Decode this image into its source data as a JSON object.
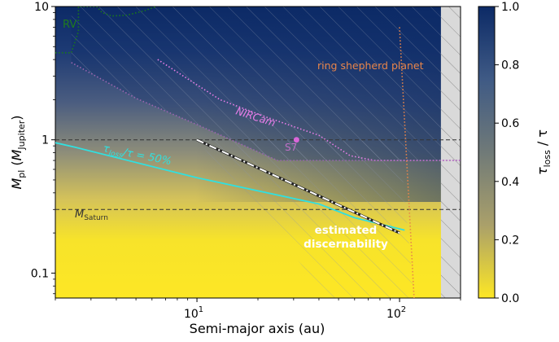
{
  "chart_data": {
    "type": "heatmap",
    "xlabel": "Semi-major axis (au)",
    "ylabel_main": "M",
    "ylabel_main_sub": "pl",
    "ylabel_paren_open": " (",
    "ylabel_paren_m": "M",
    "ylabel_paren_sub": "Jupiter",
    "ylabel_paren_close": ")",
    "xscale": "log",
    "yscale": "log",
    "xlim": [
      2,
      200
    ],
    "ylim": [
      0.065,
      10
    ],
    "x_ticks": [
      {
        "value": 10,
        "base": "10",
        "exp": "1"
      },
      {
        "value": 100,
        "base": "10",
        "exp": "2"
      }
    ],
    "y_ticks": [
      {
        "value": 0.1,
        "label": "0.1"
      },
      {
        "value": 1,
        "label": "1"
      },
      {
        "value": 10,
        "label": "10"
      }
    ],
    "colorbar": {
      "label_tau": "τ",
      "label_sub": "loss",
      "label_rest": " / τ",
      "range": [
        0,
        1
      ],
      "ticks": [
        "0.0",
        "0.2",
        "0.4",
        "0.6",
        "0.8",
        "1.0"
      ],
      "colors": [
        "#fde725",
        "#aaa06a",
        "#707a78",
        "#3f5a85",
        "#103070"
      ]
    },
    "reference_lines": [
      {
        "name": "jupiter",
        "y": 1
      },
      {
        "name": "saturn",
        "y": 0.3,
        "label_main": "M",
        "label_sub": "Saturn"
      }
    ],
    "annotations": {
      "rv": "RV",
      "nircam": "NIRCam",
      "s7": "S7",
      "ring_shepherd": "ring shepherd planet",
      "tau50_tau": "τ",
      "tau50_sub": "loss",
      "tau50_rest": "/τ = 50%",
      "discern_line1": "estimated",
      "discern_line2": "discernability"
    },
    "series": [
      {
        "key": "rv_boundary",
        "style": "dotted",
        "color": "#1a7a1a",
        "x": [
          2,
          2.4,
          2.6,
          2.6,
          3.2,
          3.4,
          3.8,
          4.5,
          5.5,
          6.3
        ],
        "y": [
          4.5,
          4.5,
          6.5,
          10,
          10,
          9,
          8.5,
          8.6,
          9.3,
          10
        ]
      },
      {
        "key": "nircam_curve",
        "style": "dotted",
        "color": "#e87ee8",
        "x": [
          6.4,
          13,
          22,
          40,
          57,
          75,
          120,
          200
        ],
        "y": [
          4.0,
          2.0,
          1.48,
          1.08,
          0.76,
          0.7,
          0.7,
          0.7
        ]
      },
      {
        "key": "purple_lower_boundary",
        "style": "dotted",
        "color": "#9b66b0",
        "x": [
          2.4,
          5,
          10,
          25,
          100,
          200
        ],
        "y": [
          3.8,
          2.05,
          1.3,
          0.7,
          0.7,
          0.7
        ]
      },
      {
        "key": "tau_loss_50_percent",
        "style": "solid",
        "color": "#30e0e0",
        "x": [
          2,
          2.5,
          10,
          40,
          60,
          106
        ],
        "y": [
          0.95,
          0.88,
          0.52,
          0.33,
          0.26,
          0.21
        ]
      },
      {
        "key": "estimated_discernability",
        "style": "dashdot",
        "color": "#ffffff",
        "x": [
          10,
          100
        ],
        "y": [
          1.0,
          0.2
        ]
      },
      {
        "key": "ring_shepherd_planet",
        "style": "dotted",
        "color": "#e8854a",
        "x": [
          100,
          118
        ],
        "y": [
          7.0,
          0.065
        ]
      }
    ],
    "points": [
      {
        "name": "S7",
        "x": 31,
        "y": 1.0,
        "color": "#d966d9"
      }
    ],
    "shaded_regions": {
      "hatched_excluded_x_min": 160,
      "grey_band_x": [
        160,
        200
      ]
    }
  }
}
